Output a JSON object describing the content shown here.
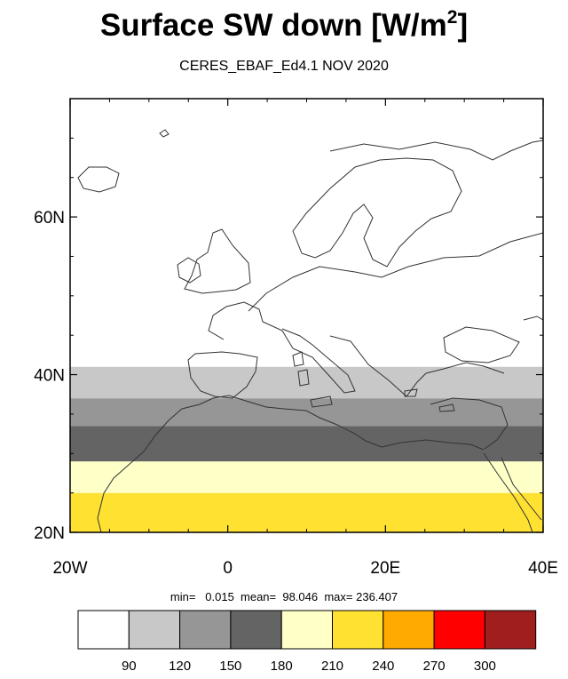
{
  "header": {
    "title_text": "Surface SW down [W/m",
    "title_sup": "2",
    "title_end": "]",
    "subtitle": "CERES_EBAF_Ed4.1 NOV 2020"
  },
  "stats": {
    "text": "min=   0.015  mean=  98.046  max= 236.407",
    "min": 0.015,
    "mean": 98.046,
    "max": 236.407
  },
  "chart_data": {
    "type": "heatmap",
    "title": "Surface SW down [W/m2]",
    "subtitle": "CERES_EBAF_Ed4.1 NOV 2020",
    "xlabel": "",
    "ylabel": "",
    "xlim": [
      -20,
      40
    ],
    "ylim": [
      20,
      75
    ],
    "x_ticks": [
      {
        "value": -20,
        "label": "20W"
      },
      {
        "value": 0,
        "label": "0"
      },
      {
        "value": 20,
        "label": "20E"
      },
      {
        "value": 40,
        "label": "40E"
      }
    ],
    "y_ticks": [
      {
        "value": 20,
        "label": "20N"
      },
      {
        "value": 40,
        "label": "40N"
      },
      {
        "value": 60,
        "label": "60N"
      }
    ],
    "colorbar": {
      "levels": [
        90,
        120,
        150,
        180,
        210,
        240,
        270,
        300
      ],
      "colors": [
        "#ffffff",
        "#c8c8c8",
        "#969696",
        "#646464",
        "#ffffc8",
        "#ffe132",
        "#ffaa00",
        "#ff0000",
        "#a01e1e"
      ]
    },
    "zonal_bands": [
      {
        "lat_min": 20,
        "lat_max": 25,
        "value": 215
      },
      {
        "lat_min": 25,
        "lat_max": 29,
        "value": 200
      },
      {
        "lat_min": 29,
        "lat_max": 33.5,
        "value": 165
      },
      {
        "lat_min": 33.5,
        "lat_max": 37,
        "value": 135
      },
      {
        "lat_min": 37,
        "lat_max": 41,
        "value": 105
      },
      {
        "lat_min": 41,
        "lat_max": 75,
        "value": 40
      }
    ]
  }
}
